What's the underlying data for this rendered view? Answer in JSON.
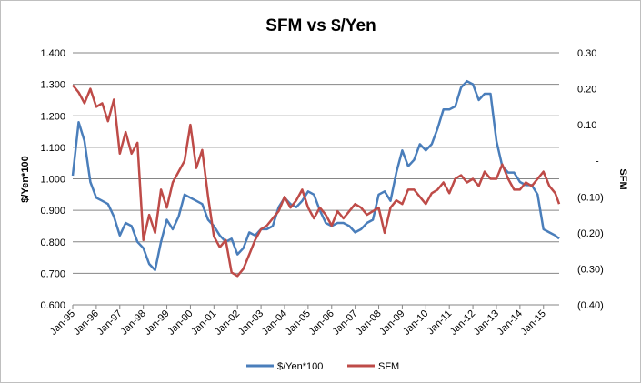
{
  "chart_data": {
    "type": "line",
    "title": "SFM vs $/Yen",
    "ylabel": "$/Yen*100",
    "y2label": "SFM",
    "ylim": [
      0.6,
      1.4
    ],
    "y2lim": [
      -0.4,
      0.3
    ],
    "yticks": [
      "0.600",
      "0.700",
      "0.800",
      "0.900",
      "1.000",
      "1.100",
      "1.200",
      "1.300",
      "1.400"
    ],
    "y2ticks": [
      "(0.40)",
      "(0.30)",
      "(0.20)",
      "(0.10)",
      "-",
      "0.10",
      "0.20",
      "0.30"
    ],
    "xticks": [
      "Jan-95",
      "Jan-96",
      "Jan-97",
      "Jan-98",
      "Jan-99",
      "Jan-00",
      "Jan-01",
      "Jan-02",
      "Jan-03",
      "Jan-04",
      "Jan-05",
      "Jan-06",
      "Jan-07",
      "Jan-08",
      "Jan-09",
      "Jan-10",
      "Jan-11",
      "Jan-12",
      "Jan-13",
      "Jan-14",
      "Jan-15"
    ],
    "xlim": [
      "Jan-95",
      "Sep-15"
    ],
    "grid": "horizontal",
    "legend_position": "bottom",
    "series": [
      {
        "name": "$/Yen*100",
        "axis": "left",
        "color": "#4a7ebb",
        "x": [
          "Jan-95",
          "Apr-95",
          "Jul-95",
          "Oct-95",
          "Jan-96",
          "Apr-96",
          "Jul-96",
          "Oct-96",
          "Jan-97",
          "Apr-97",
          "Jul-97",
          "Oct-97",
          "Jan-98",
          "Apr-98",
          "Jul-98",
          "Oct-98",
          "Jan-99",
          "Apr-99",
          "Jul-99",
          "Oct-99",
          "Jan-00",
          "Apr-00",
          "Jul-00",
          "Oct-00",
          "Jan-01",
          "Apr-01",
          "Jul-01",
          "Oct-01",
          "Jan-02",
          "Apr-02",
          "Jul-02",
          "Oct-02",
          "Jan-03",
          "Apr-03",
          "Jul-03",
          "Oct-03",
          "Jan-04",
          "Apr-04",
          "Jul-04",
          "Oct-04",
          "Jan-05",
          "Apr-05",
          "Jul-05",
          "Oct-05",
          "Jan-06",
          "Apr-06",
          "Jul-06",
          "Oct-06",
          "Jan-07",
          "Apr-07",
          "Jul-07",
          "Oct-07",
          "Jan-08",
          "Apr-08",
          "Jul-08",
          "Oct-08",
          "Jan-09",
          "Apr-09",
          "Jul-09",
          "Oct-09",
          "Jan-10",
          "Apr-10",
          "Jul-10",
          "Oct-10",
          "Jan-11",
          "Apr-11",
          "Jul-11",
          "Oct-11",
          "Jan-12",
          "Apr-12",
          "Jul-12",
          "Oct-12",
          "Jan-13",
          "Apr-13",
          "Jul-13",
          "Oct-13",
          "Jan-14",
          "Apr-14",
          "Jul-14",
          "Oct-14",
          "Jan-15",
          "Apr-15",
          "Jul-15",
          "Sep-15"
        ],
        "values": [
          1.01,
          1.18,
          1.12,
          0.99,
          0.94,
          0.93,
          0.92,
          0.88,
          0.82,
          0.86,
          0.85,
          0.8,
          0.78,
          0.73,
          0.71,
          0.8,
          0.87,
          0.84,
          0.88,
          0.95,
          0.94,
          0.93,
          0.92,
          0.87,
          0.85,
          0.82,
          0.8,
          0.81,
          0.76,
          0.78,
          0.83,
          0.82,
          0.84,
          0.84,
          0.85,
          0.91,
          0.94,
          0.92,
          0.91,
          0.93,
          0.96,
          0.95,
          0.9,
          0.86,
          0.85,
          0.86,
          0.86,
          0.85,
          0.83,
          0.84,
          0.86,
          0.87,
          0.95,
          0.96,
          0.93,
          1.02,
          1.09,
          1.04,
          1.06,
          1.11,
          1.09,
          1.11,
          1.16,
          1.22,
          1.22,
          1.23,
          1.29,
          1.31,
          1.3,
          1.25,
          1.27,
          1.27,
          1.12,
          1.04,
          1.02,
          1.02,
          0.99,
          0.98,
          0.98,
          0.95,
          0.84,
          0.83,
          0.82,
          0.81
        ]
      },
      {
        "name": "SFM",
        "axis": "right",
        "color": "#be4b48",
        "x": [
          "Jan-95",
          "Apr-95",
          "Jul-95",
          "Oct-95",
          "Jan-96",
          "Apr-96",
          "Jul-96",
          "Oct-96",
          "Jan-97",
          "Apr-97",
          "Jul-97",
          "Oct-97",
          "Jan-98",
          "Apr-98",
          "Jul-98",
          "Oct-98",
          "Jan-99",
          "Apr-99",
          "Jul-99",
          "Oct-99",
          "Jan-00",
          "Apr-00",
          "Jul-00",
          "Oct-00",
          "Jan-01",
          "Apr-01",
          "Jul-01",
          "Oct-01",
          "Jan-02",
          "Apr-02",
          "Jul-02",
          "Oct-02",
          "Jan-03",
          "Apr-03",
          "Jul-03",
          "Oct-03",
          "Jan-04",
          "Apr-04",
          "Jul-04",
          "Oct-04",
          "Jan-05",
          "Apr-05",
          "Jul-05",
          "Oct-05",
          "Jan-06",
          "Apr-06",
          "Jul-06",
          "Oct-06",
          "Jan-07",
          "Apr-07",
          "Jul-07",
          "Oct-07",
          "Jan-08",
          "Apr-08",
          "Jul-08",
          "Oct-08",
          "Jan-09",
          "Apr-09",
          "Jul-09",
          "Oct-09",
          "Jan-10",
          "Apr-10",
          "Jul-10",
          "Oct-10",
          "Jan-11",
          "Apr-11",
          "Jul-11",
          "Oct-11",
          "Jan-12",
          "Apr-12",
          "Jul-12",
          "Oct-12",
          "Jan-13",
          "Apr-13",
          "Jul-13",
          "Oct-13",
          "Jan-14",
          "Apr-14",
          "Jul-14",
          "Oct-14",
          "Jan-15",
          "Apr-15",
          "Jul-15",
          "Sep-15"
        ],
        "values": [
          0.21,
          0.19,
          0.16,
          0.2,
          0.15,
          0.16,
          0.11,
          0.17,
          0.02,
          0.08,
          0.02,
          0.05,
          -0.22,
          -0.15,
          -0.2,
          -0.08,
          -0.13,
          -0.06,
          -0.03,
          0.0,
          0.1,
          -0.02,
          0.03,
          -0.1,
          -0.21,
          -0.24,
          -0.22,
          -0.31,
          -0.32,
          -0.3,
          -0.26,
          -0.22,
          -0.19,
          -0.18,
          -0.16,
          -0.14,
          -0.1,
          -0.13,
          -0.11,
          -0.08,
          -0.13,
          -0.16,
          -0.13,
          -0.15,
          -0.18,
          -0.14,
          -0.16,
          -0.14,
          -0.12,
          -0.13,
          -0.15,
          -0.14,
          -0.13,
          -0.2,
          -0.13,
          -0.11,
          -0.12,
          -0.08,
          -0.08,
          -0.1,
          -0.12,
          -0.09,
          -0.08,
          -0.06,
          -0.09,
          -0.05,
          -0.04,
          -0.06,
          -0.05,
          -0.07,
          -0.03,
          -0.05,
          -0.05,
          -0.01,
          -0.05,
          -0.08,
          -0.08,
          -0.06,
          -0.07,
          -0.05,
          -0.03,
          -0.07,
          -0.09,
          -0.12
        ]
      }
    ]
  }
}
